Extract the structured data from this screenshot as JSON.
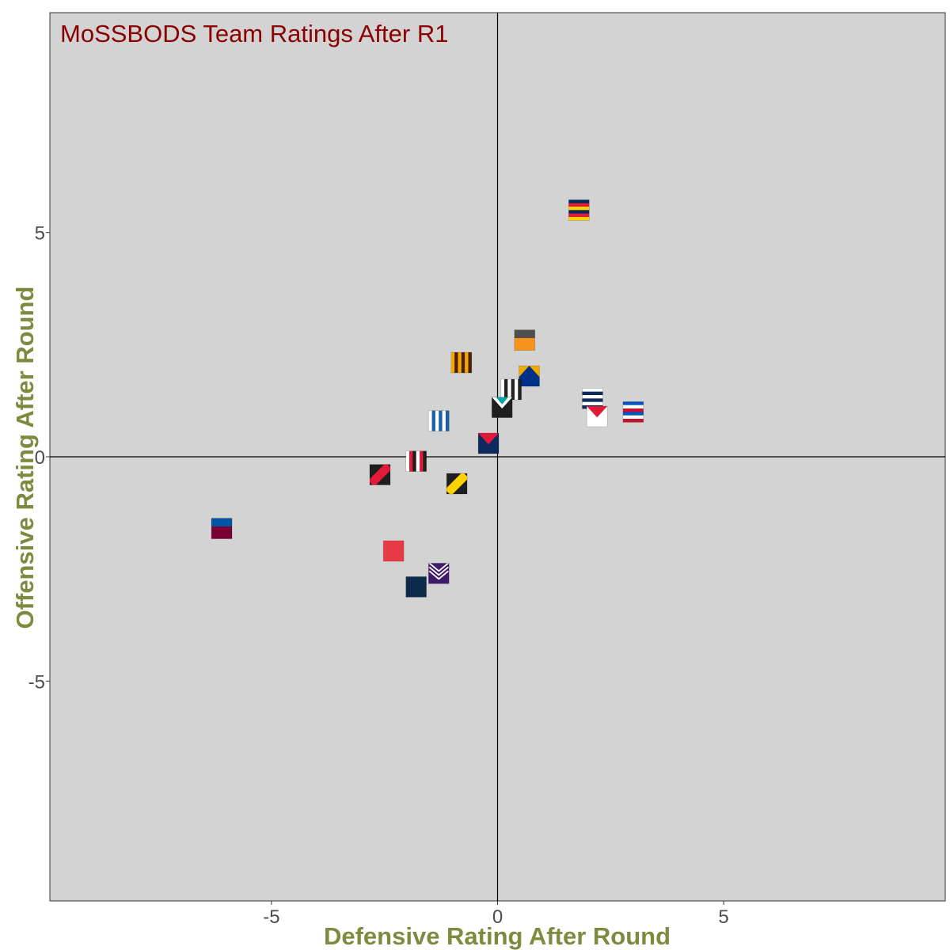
{
  "chart_data": {
    "type": "scatter",
    "title": "MoSSBODS Team Ratings After R1",
    "xlabel": "Defensive Rating After Round",
    "ylabel": "Offensive Rating After Round",
    "xlim": [
      -9.9,
      9.9
    ],
    "ylim": [
      -9.9,
      9.9
    ],
    "x_ticks": [
      -5,
      0,
      5
    ],
    "y_ticks": [
      -5,
      0,
      5
    ],
    "x_tick_labels": [
      "-5",
      "0",
      "5"
    ],
    "y_tick_labels": [
      "-5",
      "0",
      "5"
    ],
    "reference_lines": {
      "x": 0,
      "y": 0
    },
    "colors": {
      "panel": "#d3d3d3",
      "title": "#8b0000",
      "axis_title": "#7f8a3f",
      "tick_label": "#4d4d4d"
    },
    "points": [
      {
        "team": "Adelaide",
        "x": 1.8,
        "y": 5.5,
        "style": "stripes-h",
        "colors": [
          "#002b5c",
          "#e21937",
          "#ffd200"
        ]
      },
      {
        "team": "GWS",
        "x": 0.6,
        "y": 2.6,
        "style": "top-band",
        "colors": [
          "#f7931d",
          "#4f4f4f"
        ]
      },
      {
        "team": "Hawthorn",
        "x": -0.8,
        "y": 2.1,
        "style": "stripes-v",
        "colors": [
          "#f2a900",
          "#4d2004"
        ]
      },
      {
        "team": "West Coast",
        "x": 0.7,
        "y": 1.8,
        "style": "peak",
        "colors": [
          "#f2a900",
          "#003087"
        ]
      },
      {
        "team": "Collingwood",
        "x": 0.3,
        "y": 1.5,
        "style": "stripes-v",
        "colors": [
          "#ffffff",
          "#222222"
        ]
      },
      {
        "team": "North Melbourne",
        "x": 2.1,
        "y": 1.3,
        "style": "stripes-h",
        "colors": [
          "#ffffff",
          "#0e2a5c"
        ]
      },
      {
        "team": "Western Bulldogs",
        "x": 3.0,
        "y": 1.0,
        "style": "stripes-h",
        "colors": [
          "#0057b8",
          "#ffffff",
          "#c8102e"
        ]
      },
      {
        "team": "Port Adelaide",
        "x": 0.1,
        "y": 1.1,
        "style": "chevron",
        "colors": [
          "#1f1f1f",
          "#ffffff",
          "#00a6a4"
        ]
      },
      {
        "team": "Sydney",
        "x": 2.2,
        "y": 0.9,
        "style": "chevron",
        "colors": [
          "#ffffff",
          "#e21937",
          "#e21937"
        ]
      },
      {
        "team": "Geelong",
        "x": -1.3,
        "y": 0.8,
        "style": "stripes-v",
        "colors": [
          "#ffffff",
          "#1a5fae"
        ]
      },
      {
        "team": "Melbourne",
        "x": -0.2,
        "y": 0.3,
        "style": "chevron",
        "colors": [
          "#0e2a5c",
          "#e21937",
          "#e21937"
        ]
      },
      {
        "team": "St Kilda",
        "x": -1.8,
        "y": -0.1,
        "style": "stripes-v",
        "colors": [
          "#ffffff",
          "#e21937",
          "#1f1f1f"
        ]
      },
      {
        "team": "Essendon",
        "x": -2.6,
        "y": -0.4,
        "style": "sash",
        "colors": [
          "#1f1f1f",
          "#e21937"
        ]
      },
      {
        "team": "Richmond",
        "x": -0.9,
        "y": -0.6,
        "style": "sash",
        "colors": [
          "#1f1f1f",
          "#ffd200"
        ]
      },
      {
        "team": "Brisbane",
        "x": -6.1,
        "y": -1.6,
        "style": "top-band",
        "colors": [
          "#7a0033",
          "#0055a5"
        ]
      },
      {
        "team": "Gold Coast",
        "x": -2.3,
        "y": -2.1,
        "style": "solid",
        "colors": [
          "#e83a45"
        ]
      },
      {
        "team": "Fremantle",
        "x": -1.3,
        "y": -2.6,
        "style": "chevron-multi",
        "colors": [
          "#3f1a6b",
          "#ffffff"
        ]
      },
      {
        "team": "Carlton",
        "x": -1.8,
        "y": -2.9,
        "style": "solid",
        "colors": [
          "#0e2a4a"
        ]
      }
    ]
  }
}
